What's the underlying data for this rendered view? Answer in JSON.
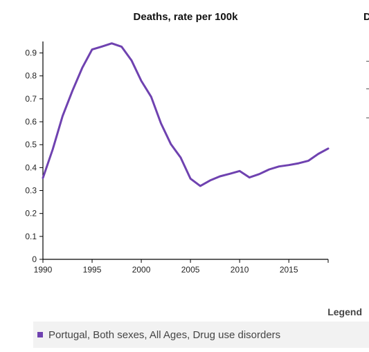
{
  "chart_data": {
    "type": "line",
    "title": "Deaths, rate per 100k",
    "xlabel": "",
    "ylabel": "",
    "xlim": [
      1990,
      2019
    ],
    "ylim": [
      0,
      0.95
    ],
    "x_ticks": [
      1990,
      1995,
      2000,
      2005,
      2010,
      2015
    ],
    "y_ticks": [
      0,
      0.1,
      0.2,
      0.3,
      0.4,
      0.5,
      0.6,
      0.7,
      0.8,
      0.9
    ],
    "y_tick_labels": [
      "0",
      "0.1",
      "0.2",
      "0.3",
      "0.4",
      "0.5",
      "0.6",
      "0.7",
      "0.8",
      "0.9"
    ],
    "legend_position": "bottom",
    "series": [
      {
        "name": "Portugal, Both sexes, All Ages, Drug use disorders",
        "color": "#6f42b0",
        "x": [
          1990,
          1991,
          1992,
          1993,
          1994,
          1995,
          1996,
          1997,
          1998,
          1999,
          2000,
          2001,
          2002,
          2003,
          2004,
          2005,
          2006,
          2007,
          2008,
          2009,
          2010,
          2011,
          2012,
          2013,
          2014,
          2015,
          2016,
          2017,
          2018,
          2019
        ],
        "y": [
          0.355,
          0.48,
          0.625,
          0.735,
          0.835,
          0.915,
          0.928,
          0.942,
          0.927,
          0.868,
          0.778,
          0.709,
          0.593,
          0.503,
          0.444,
          0.352,
          0.32,
          0.344,
          0.362,
          0.373,
          0.385,
          0.357,
          0.372,
          0.392,
          0.405,
          0.411,
          0.419,
          0.43,
          0.46,
          0.483
        ]
      }
    ]
  },
  "second_panel": {
    "title_fragment": "D"
  },
  "legend": {
    "title": "Legend",
    "items": [
      {
        "label": "Portugal, Both sexes, All Ages, Drug use disorders",
        "color": "#6f42b0"
      }
    ]
  }
}
